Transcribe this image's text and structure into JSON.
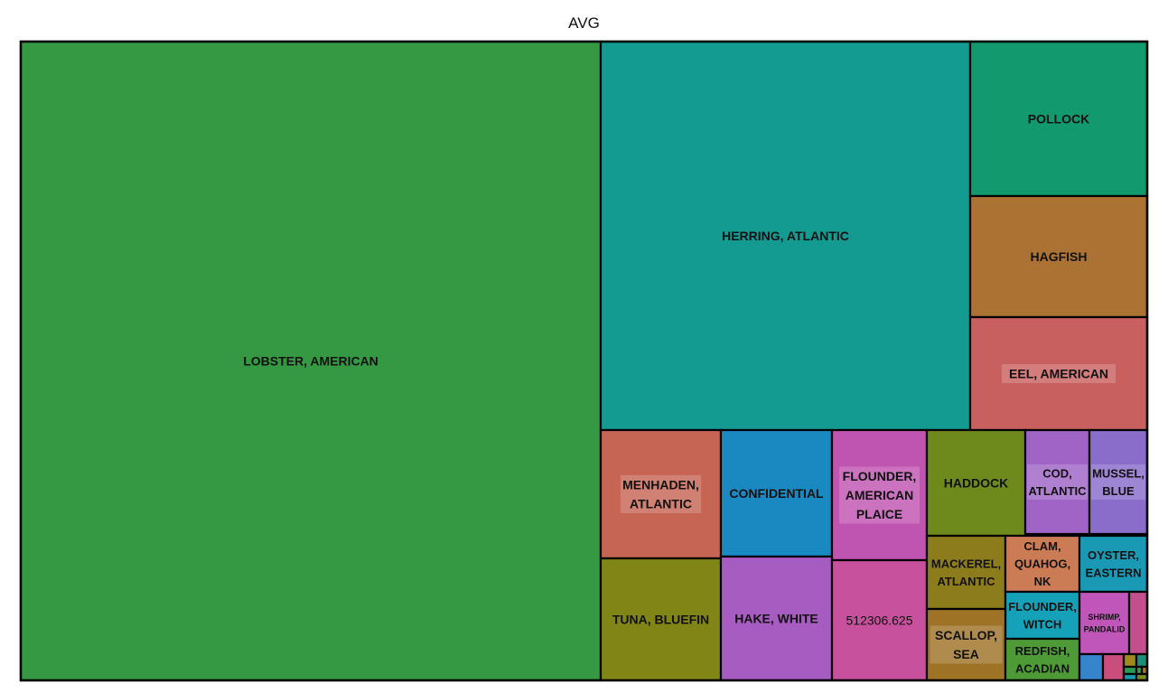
{
  "chart_data": {
    "type": "treemap",
    "title": "AVG",
    "items": [
      {
        "label": "LOBSTER, AMERICAN",
        "color": "#359843"
      },
      {
        "label": "HERRING, ATLANTIC",
        "color": "#139a91"
      },
      {
        "label": "POLLOCK",
        "color": "#12996e"
      },
      {
        "label": "HAGFISH",
        "color": "#ac7233"
      },
      {
        "label": "EEL, AMERICAN",
        "color": "#c96060"
      },
      {
        "label": "MENHADEN, ATLANTIC",
        "color": "#c66554"
      },
      {
        "label": "CONFIDENTIAL",
        "color": "#1a89c1"
      },
      {
        "label": "FLOUNDER, AMERICAN PLAICE",
        "color": "#c054b1"
      },
      {
        "label": "HADDOCK",
        "color": "#6f8a1c"
      },
      {
        "label": "COD, ATLANTIC",
        "color": "#9f64c6"
      },
      {
        "label": "MUSSEL, BLUE",
        "color": "#8a6cca"
      },
      {
        "label": "TUNA, BLUEFIN",
        "color": "#808516"
      },
      {
        "label": "HAKE, WHITE",
        "color": "#a75cc2"
      },
      {
        "label": "512306.625",
        "color": "#c7519c"
      },
      {
        "label": "MACKEREL, ATLANTIC",
        "color": "#8d7c1b"
      },
      {
        "label": "CLAM, QUAHOG, NK",
        "color": "#cc7c55"
      },
      {
        "label": "OYSTER, EASTERN",
        "color": "#1a99b5"
      },
      {
        "label": "FLOUNDER, WITCH",
        "color": "#15a2b8"
      },
      {
        "label": "SHRIMP, PANDALID",
        "color": "#c156ba"
      },
      {
        "label": "SCALLOP, SEA",
        "color": "#9e7326"
      },
      {
        "label": "REDFISH, ACADIAN",
        "color": "#4d9a37"
      },
      {
        "label": "",
        "color": "#c44f8f"
      },
      {
        "label": "",
        "color": "#3584cc"
      },
      {
        "label": "",
        "color": "#c94e7c"
      },
      {
        "label": "",
        "color": "#9e8a1d"
      },
      {
        "label": "",
        "color": "#1a8f7a"
      },
      {
        "label": "",
        "color": "#2b9a55"
      },
      {
        "label": "",
        "color": "#179ab0"
      },
      {
        "label": "",
        "color": "#3f9a4a"
      },
      {
        "label": "",
        "color": "#a07a24"
      },
      {
        "label": "",
        "color": "#7a8b22"
      }
    ]
  }
}
